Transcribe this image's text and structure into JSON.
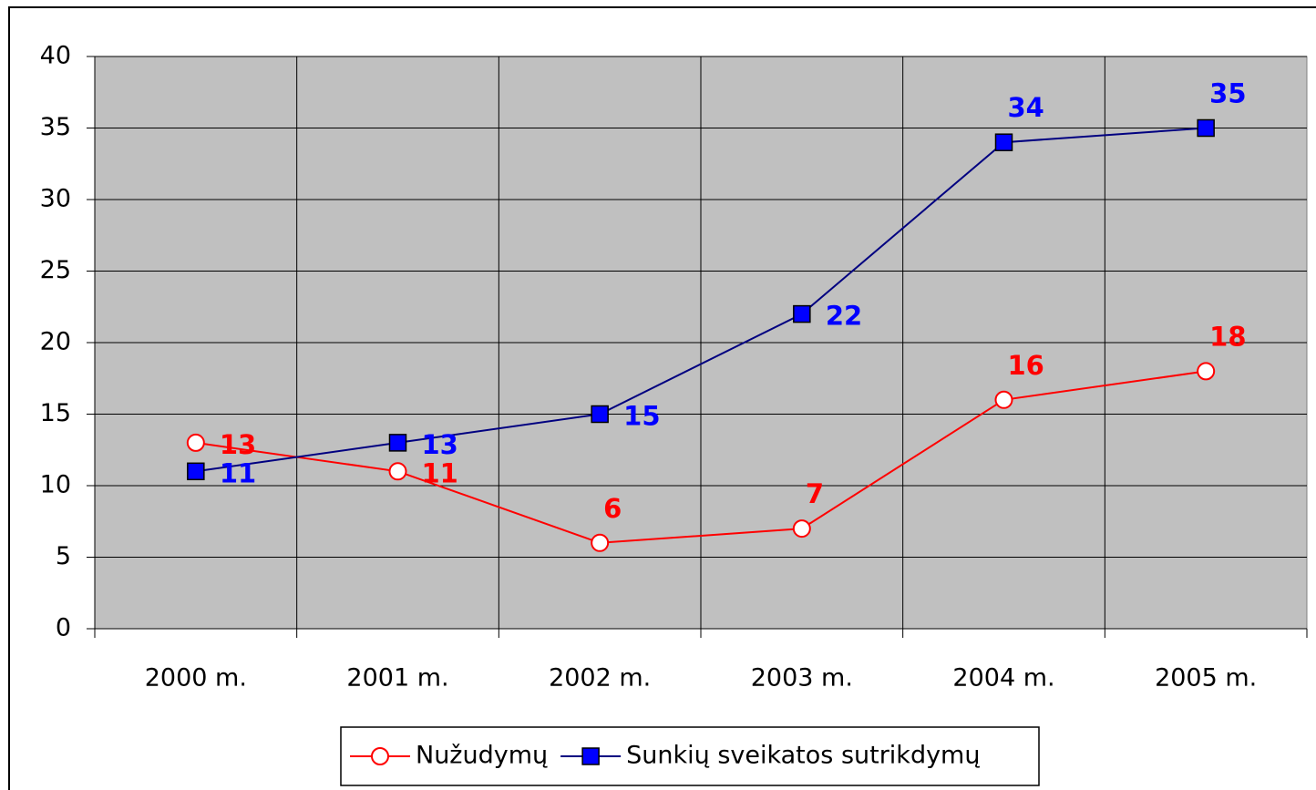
{
  "chart_data": {
    "type": "line",
    "categories": [
      "2000 m.",
      "2001 m.",
      "2002 m.",
      "2003 m.",
      "2004 m.",
      "2005 m."
    ],
    "series": [
      {
        "name": "Nužudymų",
        "color": "#ff0000",
        "marker": "circle",
        "values": [
          13,
          11,
          6,
          7,
          16,
          18
        ]
      },
      {
        "name": "Sunkių sveikatos sutrikdymų",
        "color": "#000080",
        "marker_color": "#0000ff",
        "label_color": "#0000ff",
        "marker": "square",
        "values": [
          11,
          13,
          15,
          22,
          34,
          35
        ]
      }
    ],
    "ylim": [
      0,
      40
    ],
    "yticks": [
      0,
      5,
      10,
      15,
      20,
      25,
      30,
      35,
      40
    ],
    "grid": true,
    "plot_background": "#c0c0c0",
    "legend": "bottom"
  }
}
